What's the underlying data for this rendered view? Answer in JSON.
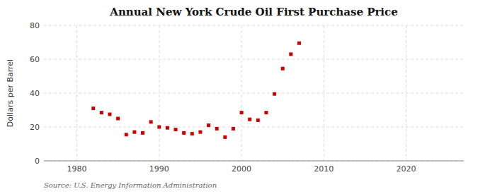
{
  "chart_data": {
    "type": "scatter",
    "title": "Annual New York Crude Oil First Purchase Price",
    "y_label": "Dollars per Barrel",
    "annotation": "Source: U.S. Energy Information Administration",
    "x": [
      1982,
      1983,
      1984,
      1985,
      1986,
      1987,
      1988,
      1989,
      1990,
      1991,
      1992,
      1993,
      1994,
      1995,
      1996,
      1997,
      1998,
      1999,
      2000,
      2001,
      2002,
      2003,
      2004,
      2005,
      2006,
      2007
    ],
    "values": [
      31.0,
      28.5,
      27.5,
      25.0,
      15.5,
      17.0,
      16.5,
      23.0,
      20.0,
      19.5,
      18.5,
      16.5,
      16.0,
      17.0,
      21.0,
      19.0,
      14.0,
      19.0,
      28.5,
      24.5,
      24.0,
      28.5,
      39.5,
      54.5,
      63.0,
      69.5
    ],
    "color": "#cc0000",
    "marker": "square",
    "xlim": [
      1976,
      2027
    ],
    "ylim": [
      0,
      80
    ],
    "xticks": [
      1980,
      1990,
      2000,
      2010,
      2020
    ],
    "yticks": [
      0,
      20,
      40,
      60,
      80
    ],
    "grid": true
  }
}
